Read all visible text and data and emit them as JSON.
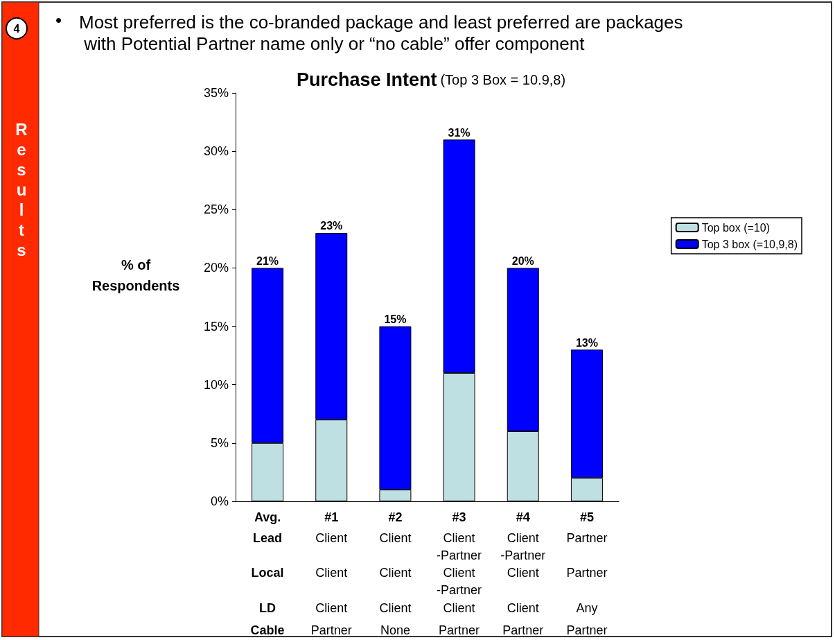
{
  "chart_data": {
    "type": "bar",
    "title": "Purchase Intent",
    "subtitle": "(Top 3 Box = 10.9,8)",
    "ylabel": "% of\nRespondents",
    "categories": [
      "Avg.",
      "#1",
      "#2",
      "#3",
      "#4",
      "#5"
    ],
    "stacked": true,
    "series": [
      {
        "name": "Top box (=10)",
        "color": "#bfe0e3",
        "values": [
          5,
          7,
          1,
          11,
          6,
          2
        ]
      },
      {
        "name": "Top 3 box (=10,9,8)",
        "color": "#0000ff",
        "values": [
          15,
          16,
          14,
          20,
          14,
          11
        ]
      }
    ],
    "totals": [
      "21%",
      "23%",
      "15%",
      "31%",
      "20%",
      "13%"
    ],
    "ylim": [
      0,
      35
    ],
    "yticks": [
      {
        "value": 0,
        "label": "0%"
      },
      {
        "value": 5,
        "label": "5%"
      },
      {
        "value": 10,
        "label": "10%"
      },
      {
        "value": 15,
        "label": "15%"
      },
      {
        "value": 20,
        "label": "20%"
      },
      {
        "value": 25,
        "label": "25%"
      },
      {
        "value": 30,
        "label": "30%"
      },
      {
        "value": 35,
        "label": "35%"
      }
    ],
    "grid": false,
    "legend": "right",
    "annotations": [
      "•",
      "Most preferred is the co-branded package and least preferred are packages with Potential Partner name only or “no cable” offer component",
      "4",
      "Results",
      "Lead",
      "Client",
      "Client",
      "Client\n-Partner",
      "Client\n-Partner",
      "Partner",
      "Local",
      "Client",
      "Client",
      "Client\n-Partner",
      "Client",
      "Partner",
      "LD",
      "Client",
      "Client",
      "Client",
      "Client",
      "Any",
      "Cable",
      "Partner",
      "None",
      "Partner",
      "Partner",
      "Partner"
    ]
  }
}
